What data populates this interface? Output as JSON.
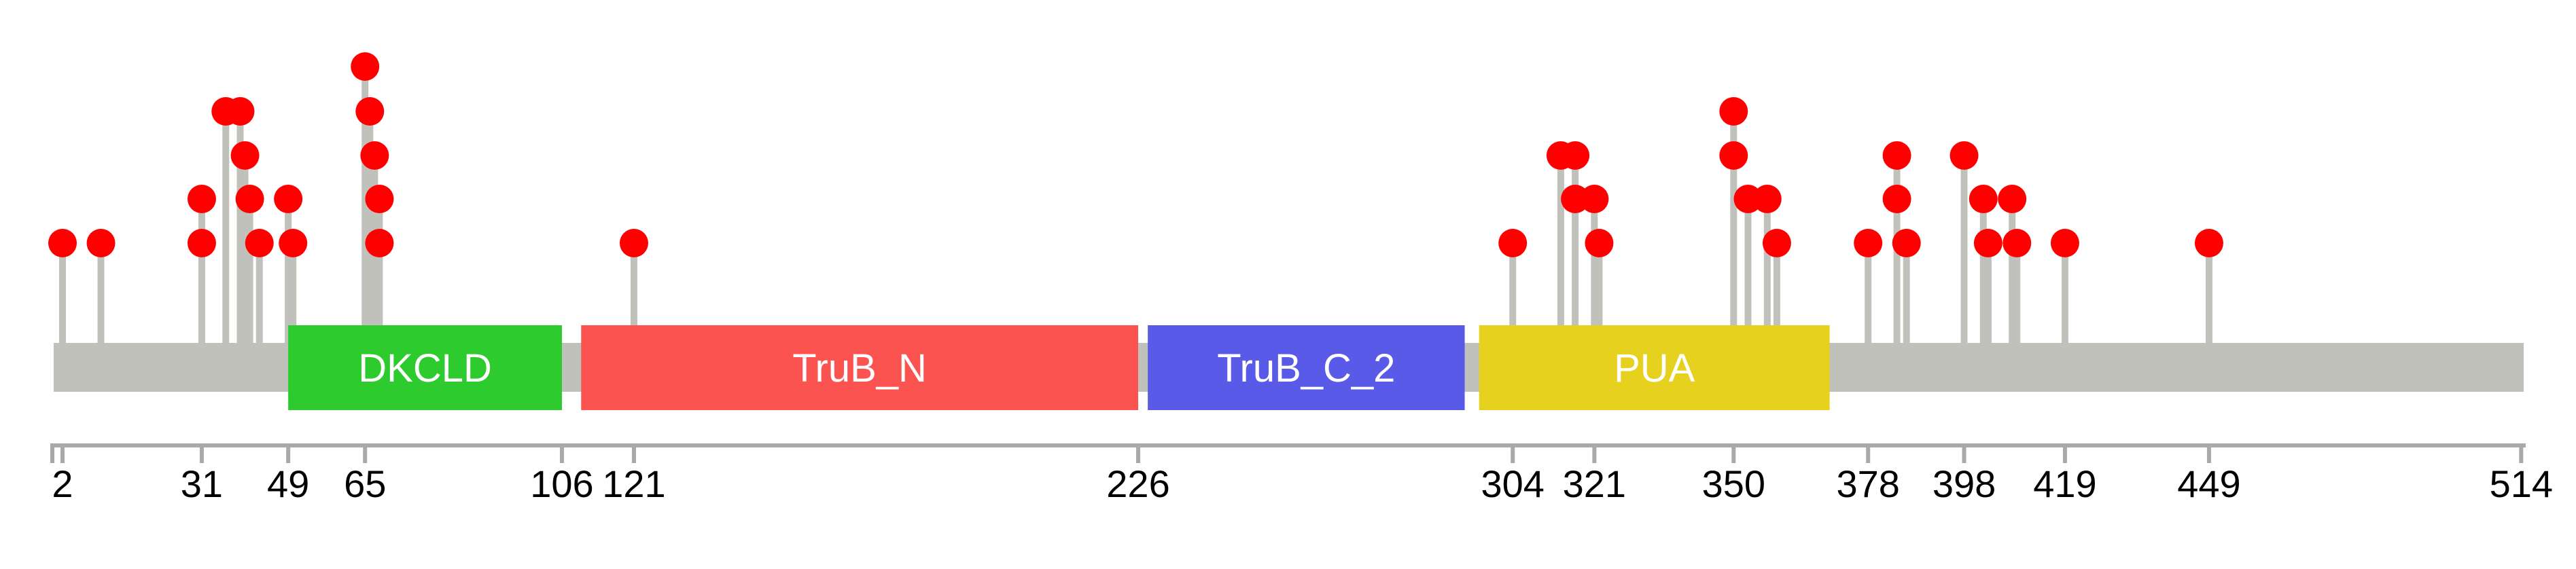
{
  "figure": {
    "background": "#ffffff",
    "description": "Protein lollipop mutation plot with Pfam domain track and residue axis"
  },
  "chart_data": {
    "type": "lollipop",
    "title": "",
    "xlabel": "",
    "ylabel": "",
    "axis_range": [
      1,
      514
    ],
    "axis_tick_values": [
      2,
      31,
      49,
      65,
      106,
      121,
      226,
      304,
      321,
      350,
      378,
      398,
      419,
      449,
      514
    ],
    "backbone": {
      "start": 1,
      "end": 514
    },
    "domains": [
      {
        "name": "DKCLD",
        "start": 49,
        "end": 106,
        "color": "#2DCB2D"
      },
      {
        "name": "TruB_N",
        "start": 110,
        "end": 226,
        "color": "#FA5350"
      },
      {
        "name": "TruB_C_2",
        "start": 228,
        "end": 294,
        "color": "#5A5AE8"
      },
      {
        "name": "PUA",
        "start": 297,
        "end": 370,
        "color": "#E6D21E"
      }
    ],
    "mutations_note": "rows: 0 = tallest lollipop tier, 4 = lowest tier; each row entry is one red circle stacked on the stem",
    "mutations": [
      {
        "position": 2,
        "rows": [
          4
        ]
      },
      {
        "position": 10,
        "rows": [
          4
        ]
      },
      {
        "position": 31,
        "rows": [
          3,
          4
        ]
      },
      {
        "position": 36,
        "rows": [
          1
        ]
      },
      {
        "position": 39,
        "rows": [
          1
        ]
      },
      {
        "position": 40,
        "rows": [
          2
        ]
      },
      {
        "position": 41,
        "rows": [
          3
        ]
      },
      {
        "position": 43,
        "rows": [
          4
        ]
      },
      {
        "position": 49,
        "rows": [
          3
        ]
      },
      {
        "position": 50,
        "rows": [
          4
        ]
      },
      {
        "position": 65,
        "rows": [
          0
        ]
      },
      {
        "position": 66,
        "rows": [
          1
        ]
      },
      {
        "position": 67,
        "rows": [
          2
        ]
      },
      {
        "position": 68,
        "rows": [
          3,
          4
        ]
      },
      {
        "position": 121,
        "rows": [
          4
        ]
      },
      {
        "position": 304,
        "rows": [
          4
        ]
      },
      {
        "position": 314,
        "rows": [
          2
        ]
      },
      {
        "position": 317,
        "rows": [
          2,
          3
        ]
      },
      {
        "position": 321,
        "rows": [
          3
        ]
      },
      {
        "position": 322,
        "rows": [
          4
        ]
      },
      {
        "position": 350,
        "rows": [
          1,
          2
        ]
      },
      {
        "position": 353,
        "rows": [
          3
        ]
      },
      {
        "position": 357,
        "rows": [
          3
        ]
      },
      {
        "position": 359,
        "rows": [
          4
        ]
      },
      {
        "position": 378,
        "rows": [
          4
        ]
      },
      {
        "position": 384,
        "rows": [
          2,
          3
        ]
      },
      {
        "position": 386,
        "rows": [
          4
        ]
      },
      {
        "position": 398,
        "rows": [
          2
        ]
      },
      {
        "position": 402,
        "rows": [
          3
        ]
      },
      {
        "position": 403,
        "rows": [
          4
        ]
      },
      {
        "position": 408,
        "rows": [
          3
        ]
      },
      {
        "position": 409,
        "rows": [
          4
        ]
      },
      {
        "position": 419,
        "rows": [
          4
        ]
      },
      {
        "position": 449,
        "rows": [
          4
        ]
      }
    ],
    "legend": null,
    "grid": false,
    "colors": {
      "mutation_circle": "#FF0000",
      "stem": "#C1C1BB",
      "backbone": "#C1C1BB",
      "axis": "#A9A9A9",
      "tick_label": "#000000",
      "domain_label": "#ffffff"
    }
  }
}
